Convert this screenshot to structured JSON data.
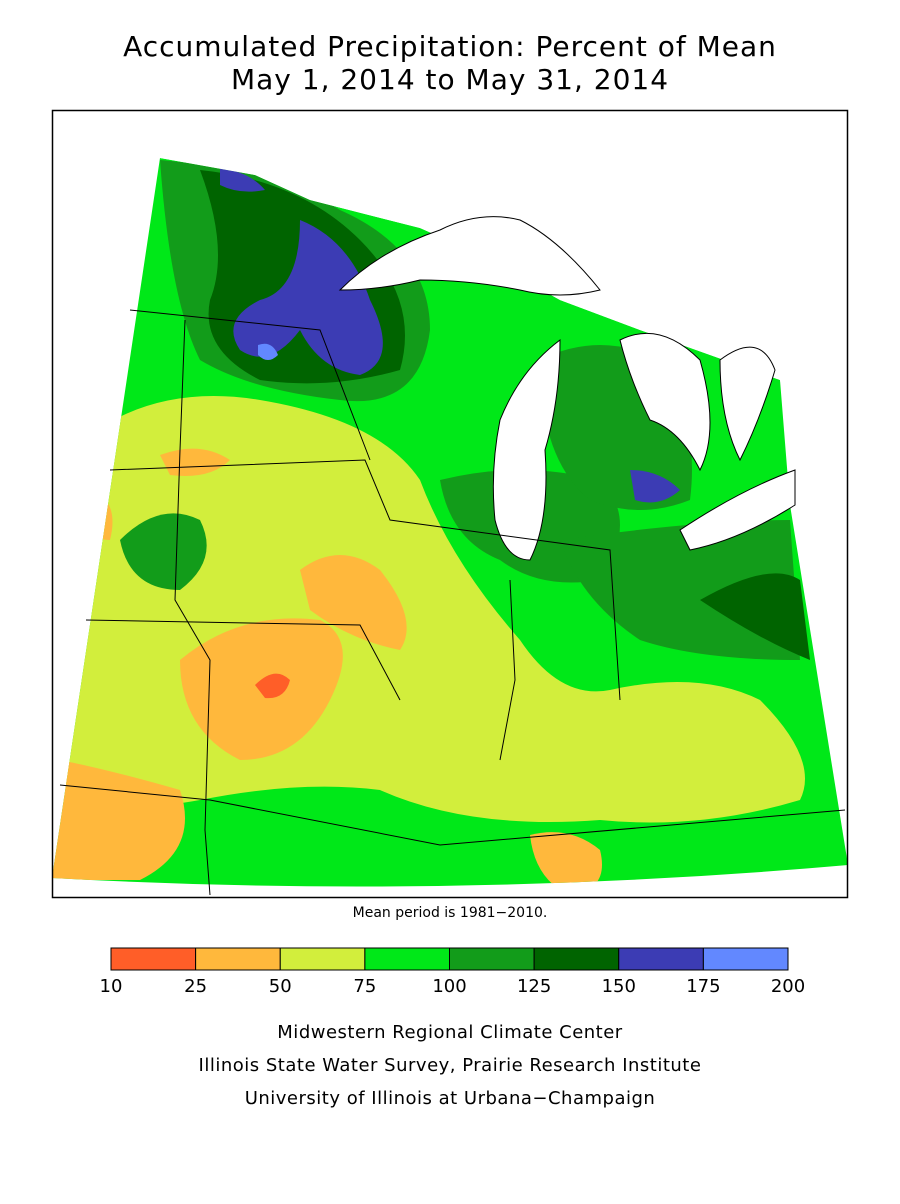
{
  "header": {
    "title": "Accumulated Precipitation: Percent of Mean",
    "subtitle": "May 1, 2014 to May 31, 2014"
  },
  "note": "Mean period is 1981−2010.",
  "legend": {
    "bins": [
      10,
      25,
      50,
      75,
      100,
      125,
      150,
      175,
      200
    ],
    "colors": [
      "#ff5e28",
      "#ffb83c",
      "#d2ee3c",
      "#00e818",
      "#129c1a",
      "#006400",
      "#3c3cb4",
      "#6288ff"
    ]
  },
  "footer": [
    "Midwestern Regional Climate Center",
    "Illinois State Water Survey, Prairie Research Institute",
    "University of Illinois at Urbana−Champaign"
  ]
}
